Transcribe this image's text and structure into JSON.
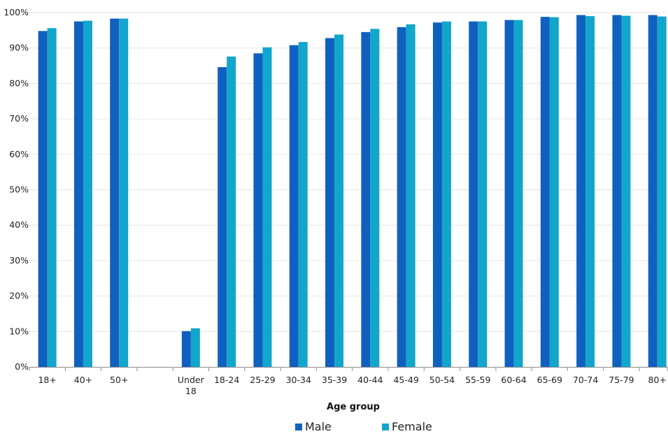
{
  "chart_data": {
    "type": "bar",
    "categories": [
      "18+",
      "40+",
      "50+",
      "",
      "Under\n18",
      "18-24",
      "25-29",
      "30-34",
      "35-39",
      "40-44",
      "45-49",
      "50-54",
      "55-59",
      "60-64",
      "65-69",
      "70-74",
      "75-79",
      "80+"
    ],
    "series": [
      {
        "name": "Male",
        "color": "#1060c0",
        "values": [
          94.8,
          97.5,
          98.3,
          null,
          10.1,
          84.6,
          88.5,
          90.8,
          92.8,
          94.5,
          95.9,
          97.2,
          97.5,
          97.9,
          98.8,
          99.3,
          99.3,
          99.3
        ]
      },
      {
        "name": "Female",
        "color": "#12a6cd",
        "values": [
          95.6,
          97.7,
          98.3,
          null,
          10.9,
          87.6,
          90.2,
          91.7,
          93.8,
          95.4,
          96.7,
          97.5,
          97.5,
          97.9,
          98.7,
          99.0,
          99.1,
          98.9
        ]
      }
    ],
    "title": "",
    "xlabel": "Age group",
    "ylabel": "",
    "ylim": [
      0,
      100
    ],
    "yticks": [
      "0%",
      "10%",
      "20%",
      "30%",
      "40%",
      "50%",
      "60%",
      "70%",
      "80%",
      "90%",
      "100%"
    ],
    "grid": true,
    "legend_position": "bottom"
  }
}
